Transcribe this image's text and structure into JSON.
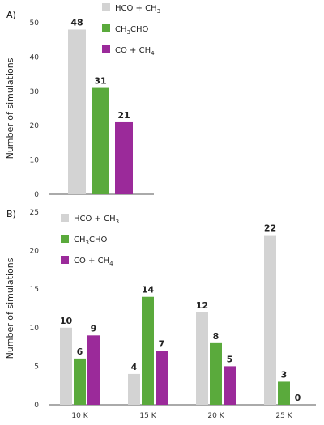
{
  "chart_data": [
    {
      "type": "bar",
      "panel_label": "A)",
      "categories": [
        ""
      ],
      "series": [
        {
          "name": "HCO + CH3",
          "name_main": "HCO + CH",
          "name_sub": "3",
          "color": "#d3d3d3",
          "values": [
            48
          ]
        },
        {
          "name": "CH3CHO",
          "name_main": "CH",
          "name_sub": "3",
          "name_tail": "CHO",
          "color": "#5aaa3c",
          "values": [
            31
          ]
        },
        {
          "name": "CO + CH4",
          "name_main": "CO + CH",
          "name_sub": "4",
          "color": "#9b2a9a",
          "values": [
            21
          ]
        }
      ],
      "ylabel": "Number of simulations",
      "ylim": [
        0,
        50
      ],
      "yticks": [
        0,
        10,
        20,
        30,
        40,
        50
      ],
      "legend": "top-right",
      "grid": false
    },
    {
      "type": "bar",
      "panel_label": "B)",
      "categories": [
        "10 K",
        "15 K",
        "20 K",
        "25 K"
      ],
      "series": [
        {
          "name": "HCO + CH3",
          "name_main": "HCO + CH",
          "name_sub": "3",
          "color": "#d3d3d3",
          "values": [
            10,
            4,
            12,
            22
          ]
        },
        {
          "name": "CH3CHO",
          "name_main": "CH",
          "name_sub": "3",
          "name_tail": "CHO",
          "color": "#5aaa3c",
          "values": [
            6,
            14,
            8,
            3
          ]
        },
        {
          "name": "CO + CH4",
          "name_main": "CO + CH",
          "name_sub": "4",
          "color": "#9b2a9a",
          "values": [
            9,
            7,
            5,
            0
          ]
        }
      ],
      "ylabel": "Number of simulations",
      "ylim": [
        0,
        25
      ],
      "yticks": [
        0,
        5,
        10,
        15,
        20,
        25
      ],
      "legend": "top-left",
      "grid": false
    }
  ]
}
